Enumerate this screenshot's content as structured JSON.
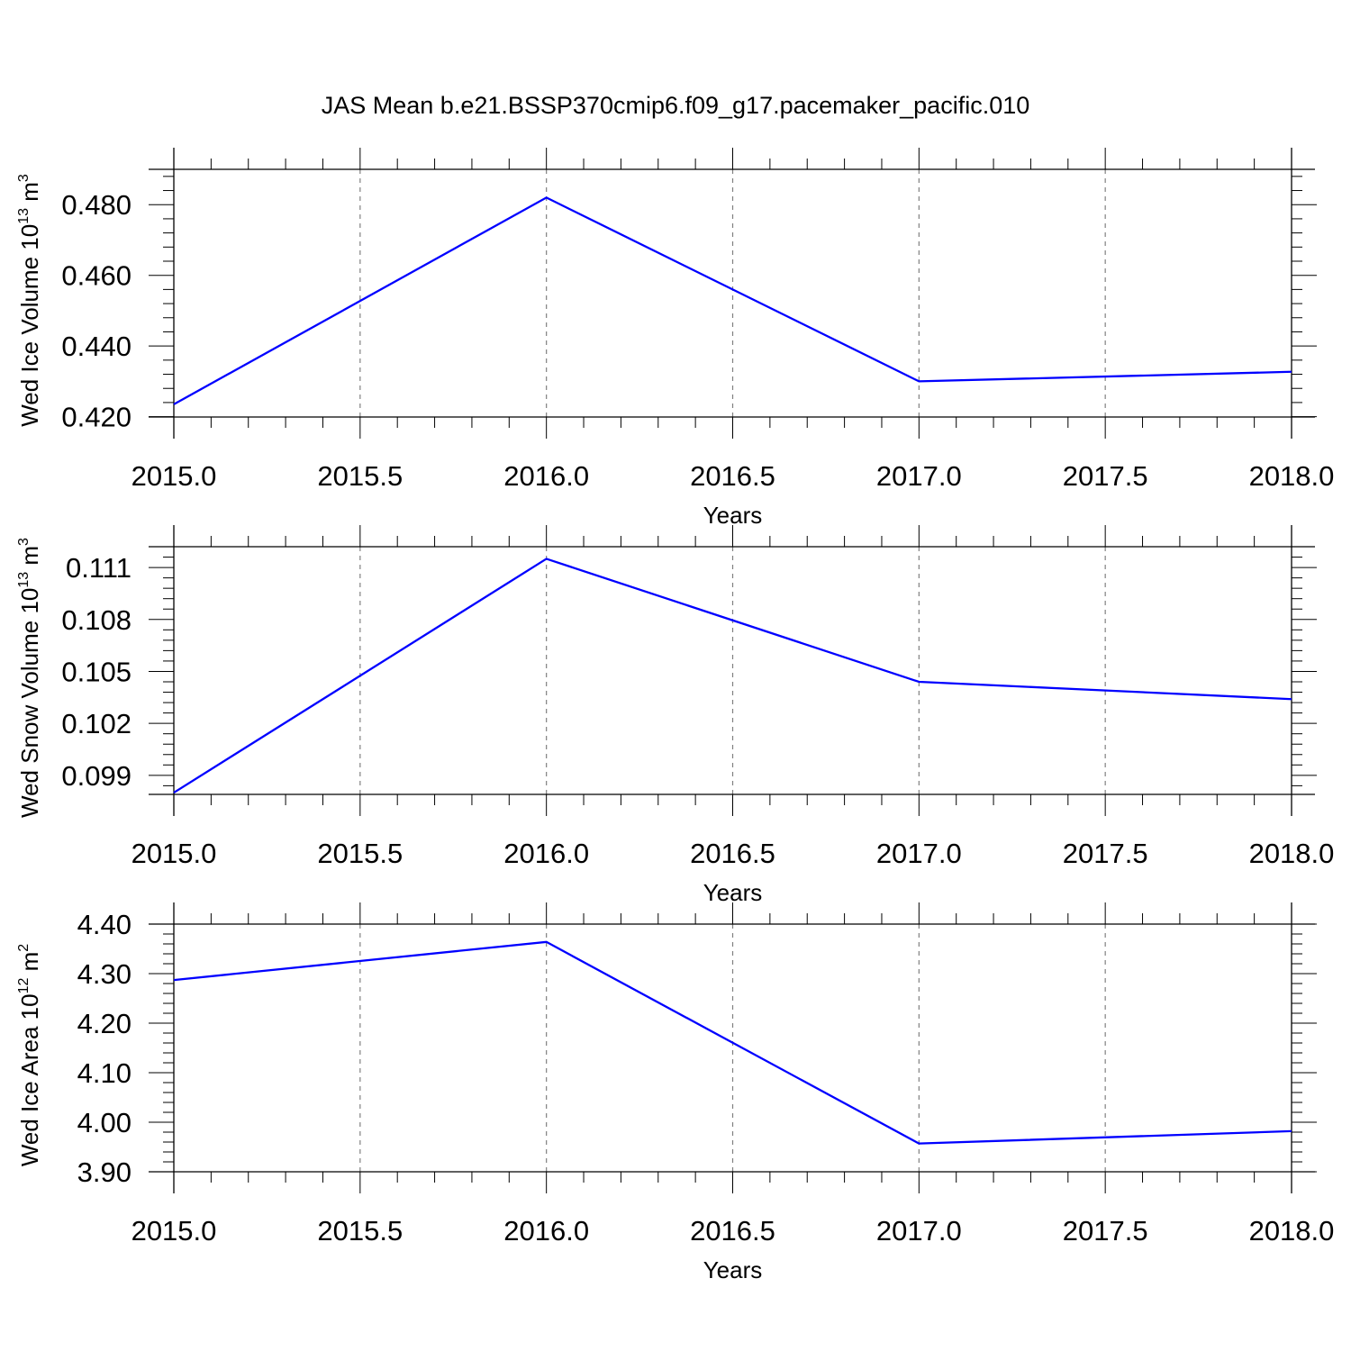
{
  "title": "JAS Mean b.e21.BSSP370cmip6.f09_g17.pacemaker_pacific.010",
  "colors": {
    "line": "#0000ff",
    "axis": "#000000",
    "grid": "#808080"
  },
  "chart_data": [
    {
      "type": "line",
      "xlabel": "Years",
      "ylabel": {
        "text": "Wed Ice Volume 10",
        "exp": "13",
        "unit": " m",
        "unit_exp": "3"
      },
      "xlim": [
        2015.0,
        2018.0
      ],
      "ylim": [
        0.4199,
        0.49
      ],
      "x_ticks": [
        2015.0,
        2015.5,
        2016.0,
        2016.5,
        2017.0,
        2017.5,
        2018.0
      ],
      "x_tick_labels": [
        "2015.0",
        "2015.5",
        "2016.0",
        "2016.5",
        "2017.0",
        "2017.5",
        "2018.0"
      ],
      "y_ticks": [
        0.42,
        0.44,
        0.46,
        0.48
      ],
      "y_tick_labels": [
        "0.420",
        "0.440",
        "0.460",
        "0.480"
      ],
      "grid": "vertical dashed at major x ticks",
      "series": [
        {
          "x": [
            2015,
            2016,
            2017,
            2018
          ],
          "values": [
            0.4235,
            0.482,
            0.43,
            0.4327
          ]
        }
      ]
    },
    {
      "type": "line",
      "xlabel": "Years",
      "ylabel": {
        "text": "Wed Snow Volume 10",
        "exp": "13",
        "unit": " m",
        "unit_exp": "3"
      },
      "xlim": [
        2015.0,
        2018.0
      ],
      "ylim": [
        0.0979,
        0.1122
      ],
      "x_ticks": [
        2015.0,
        2015.5,
        2016.0,
        2016.5,
        2017.0,
        2017.5,
        2018.0
      ],
      "x_tick_labels": [
        "2015.0",
        "2015.5",
        "2016.0",
        "2016.5",
        "2017.0",
        "2017.5",
        "2018.0"
      ],
      "y_ticks": [
        0.099,
        0.102,
        0.105,
        0.108,
        0.111
      ],
      "y_tick_labels": [
        "0.099",
        "0.102",
        "0.105",
        "0.108",
        "0.111"
      ],
      "grid": "vertical dashed at major x ticks",
      "series": [
        {
          "x": [
            2015,
            2016,
            2017,
            2018
          ],
          "values": [
            0.098,
            0.1115,
            0.1044,
            0.1034
          ]
        }
      ]
    },
    {
      "type": "line",
      "xlabel": "Years",
      "ylabel": {
        "text": "Wed Ice Area 10",
        "exp": "12",
        "unit": " m",
        "unit_exp": "2"
      },
      "xlim": [
        2015.0,
        2018.0
      ],
      "ylim": [
        3.9,
        4.4
      ],
      "x_ticks": [
        2015.0,
        2015.5,
        2016.0,
        2016.5,
        2017.0,
        2017.5,
        2018.0
      ],
      "x_tick_labels": [
        "2015.0",
        "2015.5",
        "2016.0",
        "2016.5",
        "2017.0",
        "2017.5",
        "2018.0"
      ],
      "y_ticks": [
        3.9,
        4.0,
        4.1,
        4.2,
        4.3,
        4.4
      ],
      "y_tick_labels": [
        "3.90",
        "4.00",
        "4.10",
        "4.20",
        "4.30",
        "4.40"
      ],
      "grid": "vertical dashed at major x ticks",
      "series": [
        {
          "x": [
            2015,
            2016,
            2017,
            2018
          ],
          "values": [
            4.287,
            4.364,
            3.957,
            3.982
          ]
        }
      ]
    }
  ]
}
